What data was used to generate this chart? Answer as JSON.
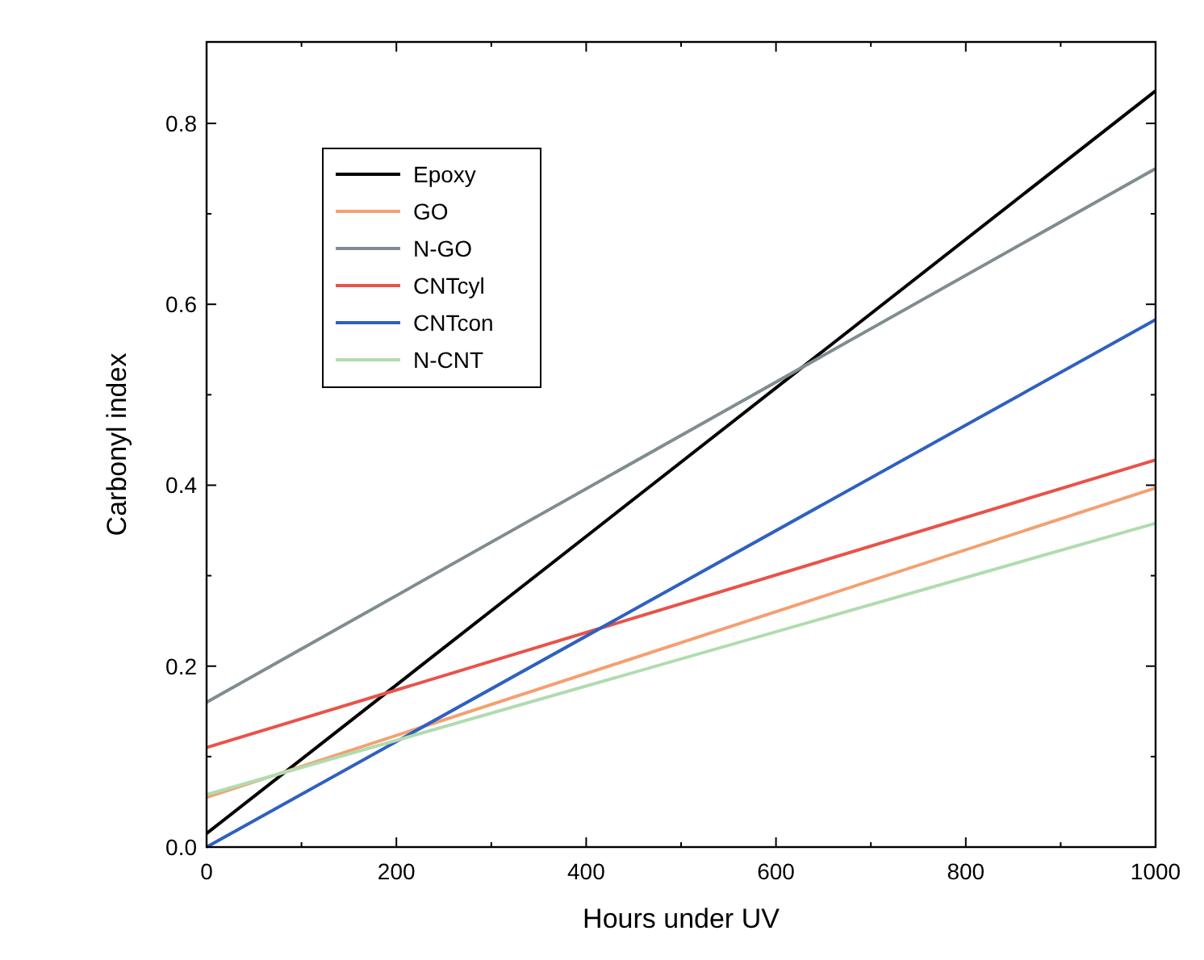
{
  "chart_data": {
    "type": "line",
    "xlabel": "Hours under UV",
    "ylabel": "Carbonyl index",
    "x": [
      0,
      1000
    ],
    "xlim": [
      0,
      1000
    ],
    "ylim": [
      0,
      0.89
    ],
    "xticks": [
      0,
      200,
      400,
      600,
      800,
      1000
    ],
    "yticks": [
      {
        "value": 0,
        "label": "0.0"
      },
      0.2,
      0.4,
      0.6,
      0.8
    ],
    "grid": false,
    "legend": "top left",
    "marker": "none",
    "line_style": "solid",
    "series": [
      {
        "name": "Epoxy",
        "color": "#000000",
        "values": [
          0.015,
          0.836
        ]
      },
      {
        "name": "GO",
        "color": "#f4a070",
        "values": [
          0.055,
          0.397
        ]
      },
      {
        "name": "N-GO",
        "color": "#808c90",
        "values": [
          0.16,
          0.75
        ]
      },
      {
        "name": "CNTcyl",
        "color": "#e8534a",
        "values": [
          0.11,
          0.428
        ]
      },
      {
        "name": "CNTcon",
        "color": "#3060c0",
        "values": [
          0,
          0.583
        ]
      },
      {
        "name": "N-CNT",
        "color": "#b0dcb0",
        "values": [
          0.058,
          0.358
        ]
      }
    ]
  }
}
